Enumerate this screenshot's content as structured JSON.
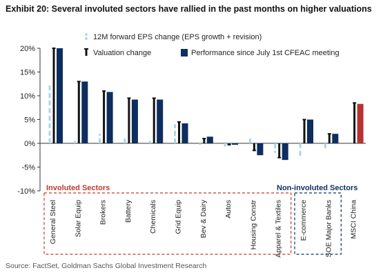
{
  "title": "Exhibit 20: Several involuted sectors have rallied in the past months on higher valuations",
  "source": "Source: FactSet, Goldman Sachs Global Investment Research",
  "colors": {
    "eps": "#a9d4ee",
    "valuation": "#111111",
    "performance": "#0d2e5e",
    "highlight": "#b83232",
    "involuted_box": "#c0392b",
    "noninvoluted_box": "#0d2e5e"
  },
  "chart_data": {
    "type": "bar",
    "y_tick_labels": [
      "20%",
      "15%",
      "10%",
      "5%",
      "0%",
      "-5%",
      "-10%"
    ],
    "ylim": [
      -10,
      20
    ],
    "categories": [
      "General Steel",
      "Solar Equip",
      "Brokers",
      "Battery",
      "Chemicals",
      "Grid Equip",
      "Bev & Dairy",
      "Autos",
      "Housing Constr",
      "Apparel & Textiles",
      "E-commerce",
      "SOE Major Banks",
      "MSCI China"
    ],
    "series": [
      {
        "name": "12M forward EPS change (EPS growth + revision)",
        "style": "dashed-line",
        "values": [
          12.5,
          0.5,
          2.0,
          1.0,
          0.5,
          4.0,
          -0.3,
          -0.7,
          1.5,
          -2.0,
          -3.0,
          -1.5,
          0.0
        ]
      },
      {
        "name": "Valuation change",
        "style": "capped-line",
        "values": [
          20.0,
          13.0,
          11.0,
          9.5,
          9.5,
          4.5,
          1.0,
          -0.3,
          -1.5,
          -3.0,
          5.0,
          2.0,
          8.5
        ]
      },
      {
        "name": "Performance since July 1st CFEAC meeting",
        "style": "bar",
        "values": [
          20.0,
          13.0,
          10.8,
          9.2,
          9.2,
          4.2,
          1.4,
          -0.3,
          -2.5,
          -3.5,
          5.0,
          2.0,
          8.3
        ]
      }
    ],
    "highlight_category": "MSCI China",
    "groups": [
      {
        "label": "Involuted Sectors",
        "from": 0,
        "to": 9
      },
      {
        "label": "Non-involuted Sectors",
        "from": 10,
        "to": 11
      }
    ],
    "legend_position": "top"
  }
}
